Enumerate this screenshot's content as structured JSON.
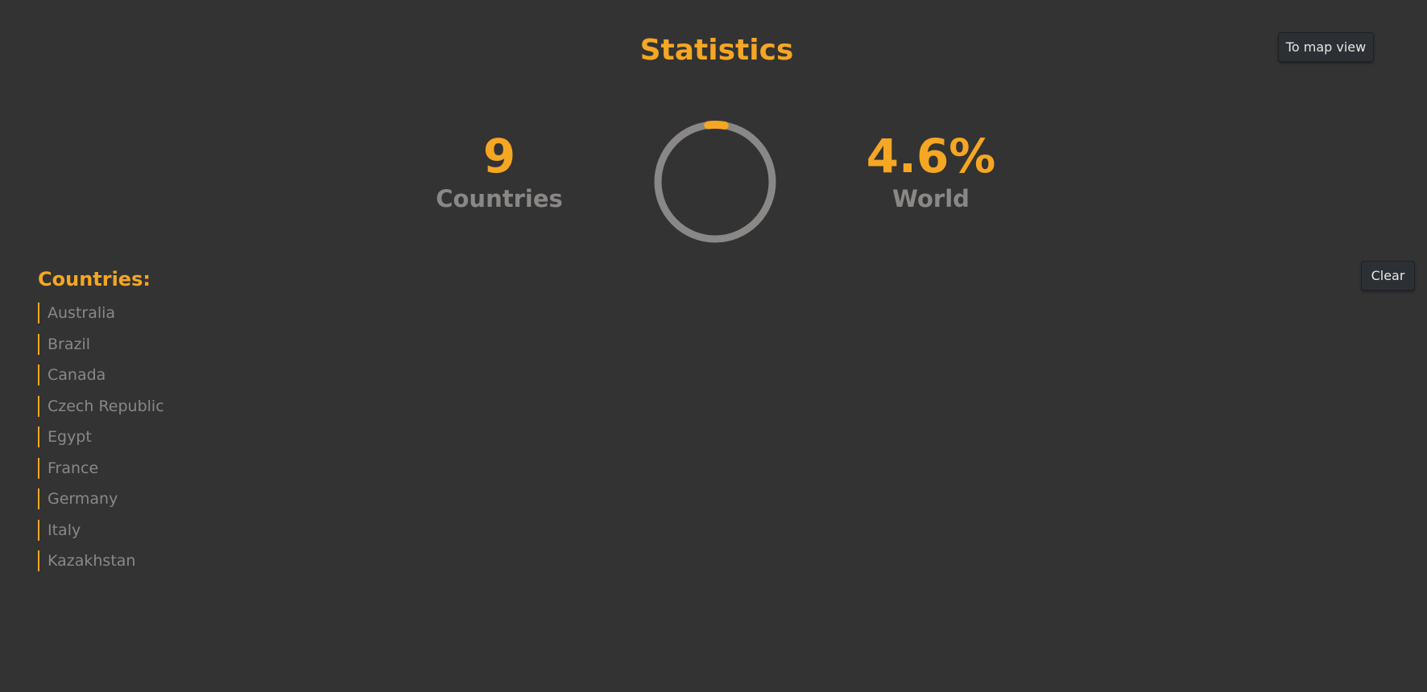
{
  "header": {
    "title": "Statistics",
    "map_button_label": "To map view"
  },
  "stats": {
    "countries_value": "9",
    "countries_label": "Countries",
    "world_value": "4.6%",
    "world_label": "World",
    "world_fraction": 0.046
  },
  "colors": {
    "accent": "#f5a623",
    "muted": "#8a8887",
    "background": "#333333"
  },
  "countries": {
    "heading": "Countries:",
    "clear_label": "Clear",
    "items": [
      "Australia",
      "Brazil",
      "Canada",
      "Czech Republic",
      "Egypt",
      "France",
      "Germany",
      "Italy",
      "Kazakhstan"
    ]
  }
}
